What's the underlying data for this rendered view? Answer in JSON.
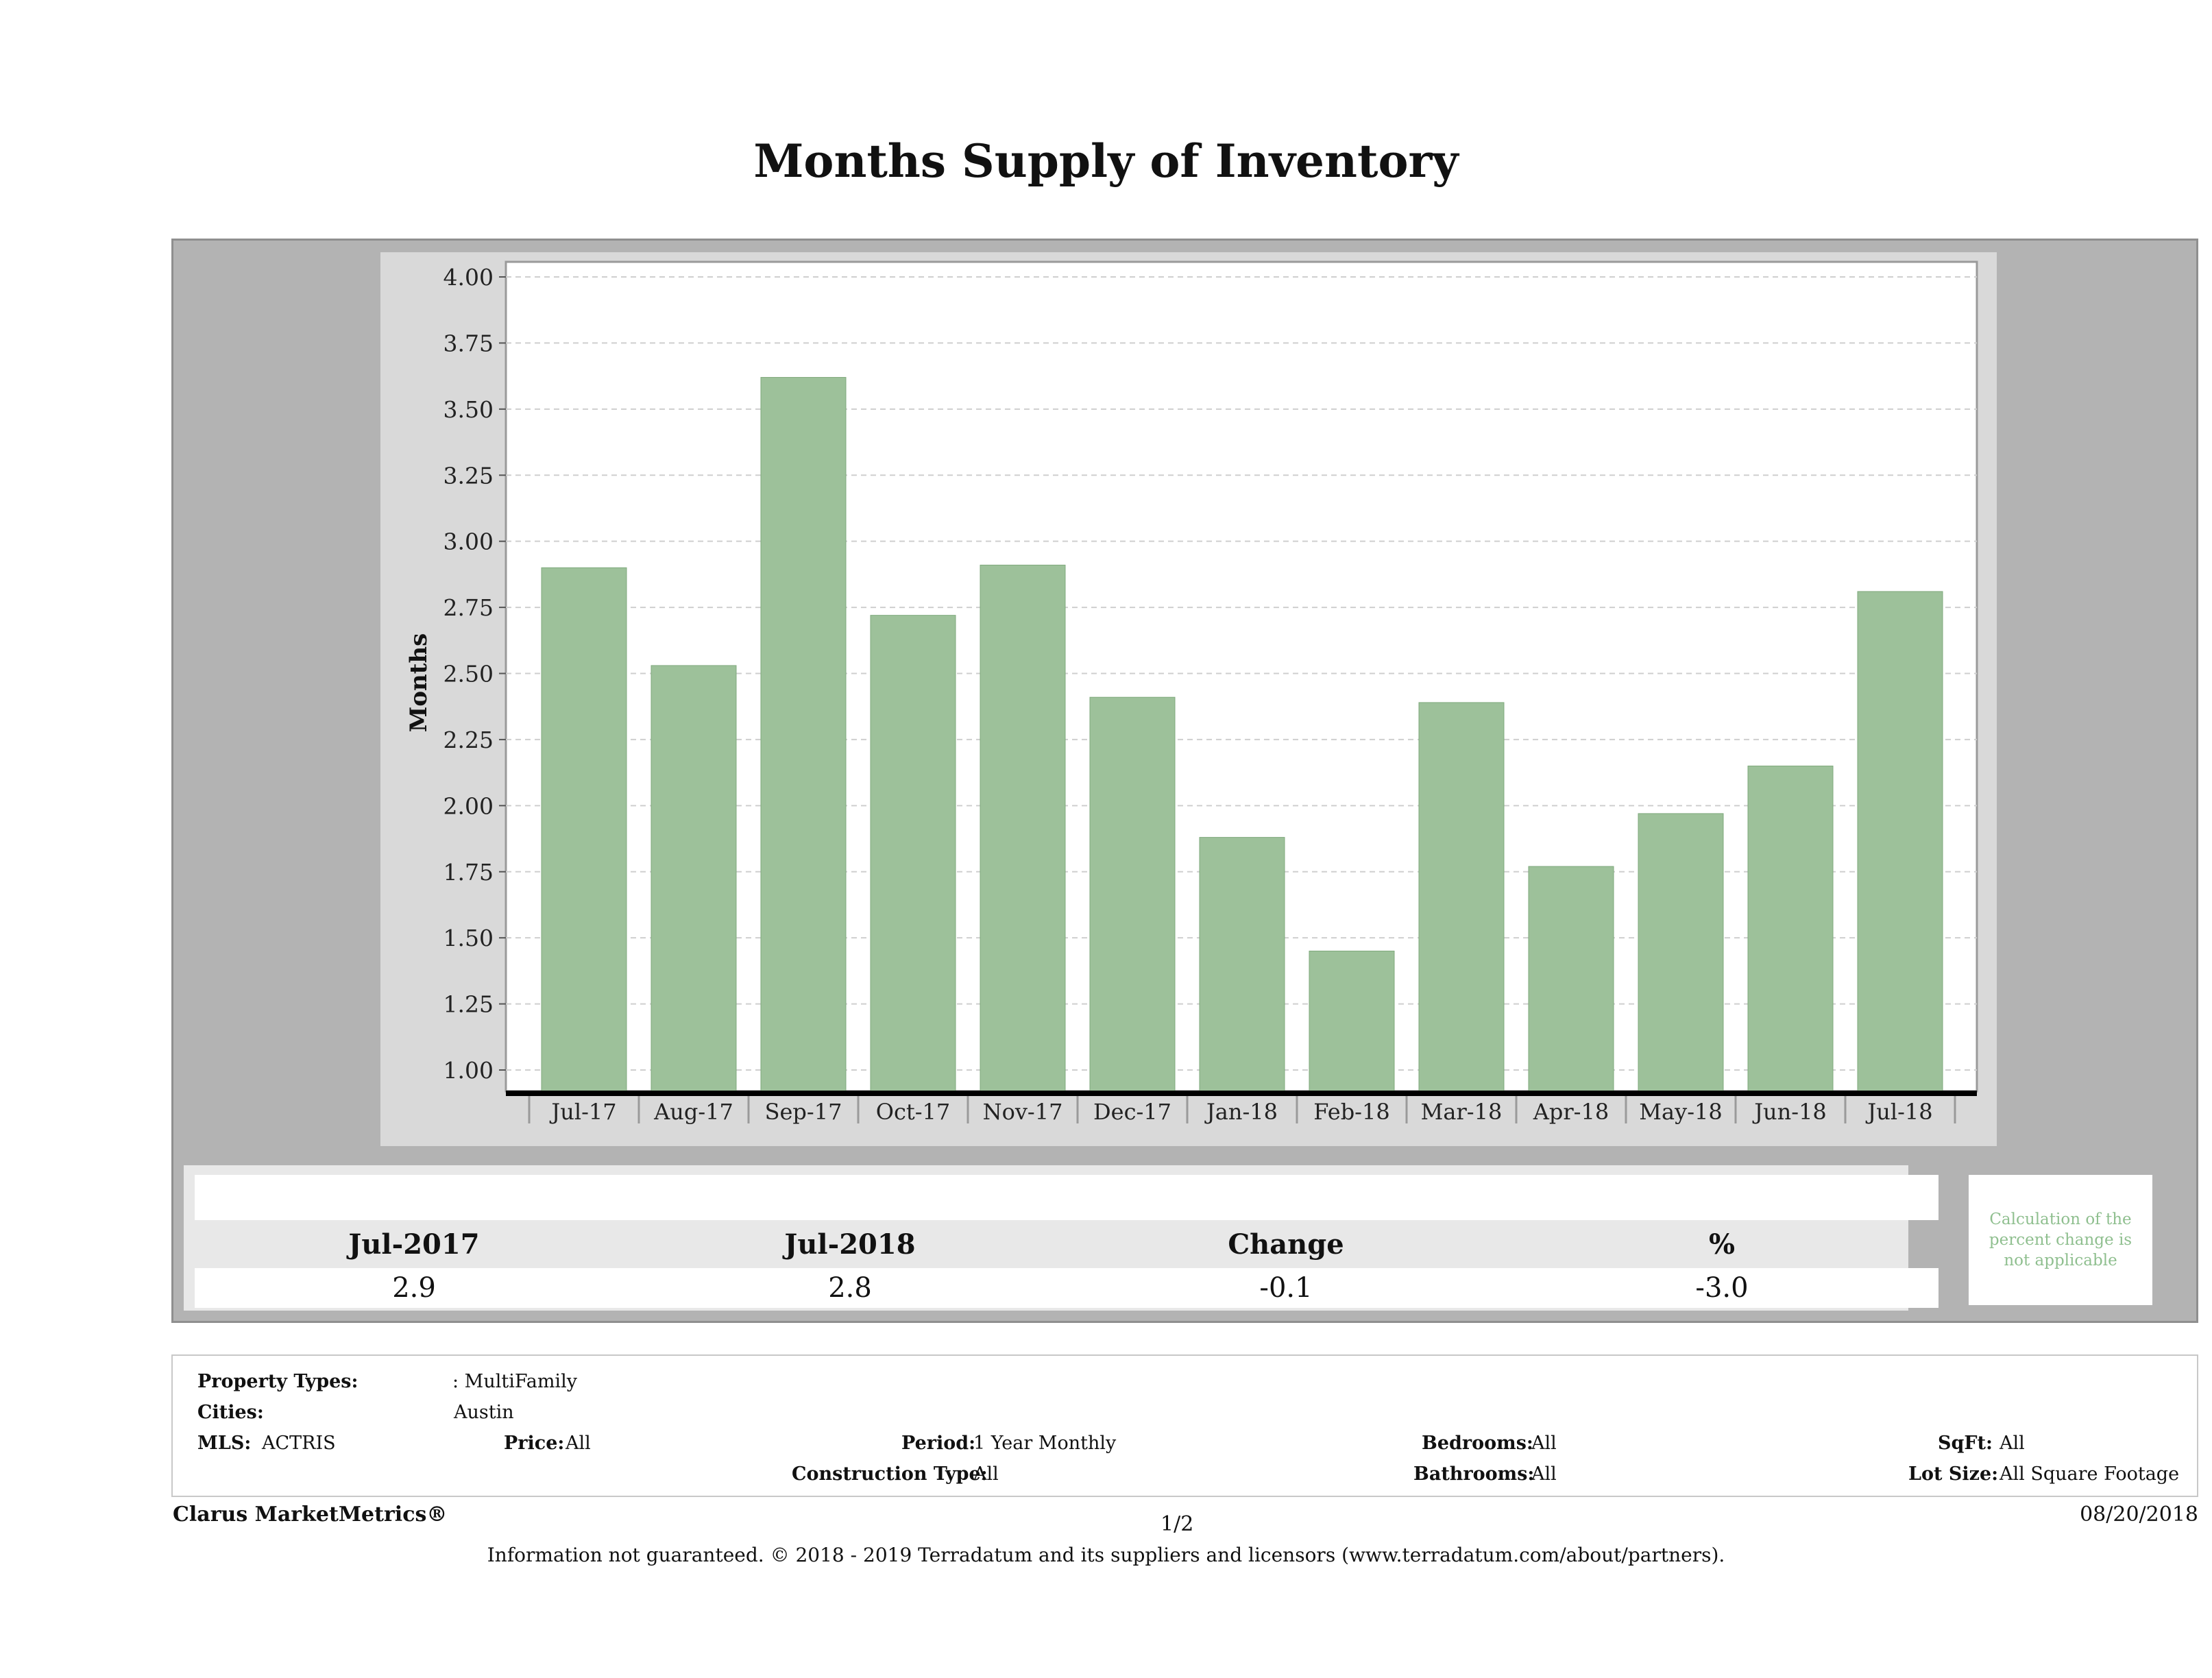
{
  "page": {
    "title": "Months Supply of Inventory"
  },
  "chart_data": {
    "type": "bar",
    "ylabel": "Months",
    "xlabel": "",
    "ylim": [
      1.0,
      4.0
    ],
    "yticks": [
      "1.00",
      "1.25",
      "1.50",
      "1.75",
      "2.00",
      "2.25",
      "2.50",
      "2.75",
      "3.00",
      "3.25",
      "3.50",
      "3.75",
      "4.00"
    ],
    "categories": [
      "Jul-17",
      "Aug-17",
      "Sep-17",
      "Oct-17",
      "Nov-17",
      "Dec-17",
      "Jan-18",
      "Feb-18",
      "Mar-18",
      "Apr-18",
      "May-18",
      "Jun-18",
      "Jul-18"
    ],
    "values": [
      2.9,
      2.53,
      3.62,
      2.72,
      2.91,
      2.41,
      1.88,
      1.45,
      2.39,
      1.77,
      1.97,
      2.15,
      2.81
    ],
    "bar_color": "#9dc19a",
    "grid": true
  },
  "stats": {
    "headers": [
      "Jul-2017",
      "Jul-2018",
      "Change",
      "%"
    ],
    "values": [
      "2.9",
      "2.8",
      "-0.1",
      "-3.0"
    ],
    "note": "Calculation of the percent change is not applicable"
  },
  "criteria": {
    "property_types_label": "Property Types:",
    "property_types_value": ": MultiFamily",
    "cities_label": "Cities:",
    "cities_value": "Austin",
    "mls_label": "MLS:",
    "mls_value": "ACTRIS",
    "price_label": "Price:",
    "price_value": "All",
    "period_label": "Period:",
    "period_value": "1 Year Monthly",
    "construction_label": "Construction Type:",
    "construction_value": "All",
    "bedrooms_label": "Bedrooms:",
    "bedrooms_value": "All",
    "bathrooms_label": "Bathrooms:",
    "bathrooms_value": "All",
    "sqft_label": "SqFt:",
    "sqft_value": "All",
    "lotsize_label": "Lot Size:",
    "lotsize_value": "All Square Footage"
  },
  "footer": {
    "brand": "Clarus MarketMetrics®",
    "page_number": "1/2",
    "date": "08/20/2018",
    "disclaimer": "Information not guaranteed. © 2018 - 2019 Terradatum and its suppliers and licensors (www.terradatum.com/about/partners)."
  }
}
